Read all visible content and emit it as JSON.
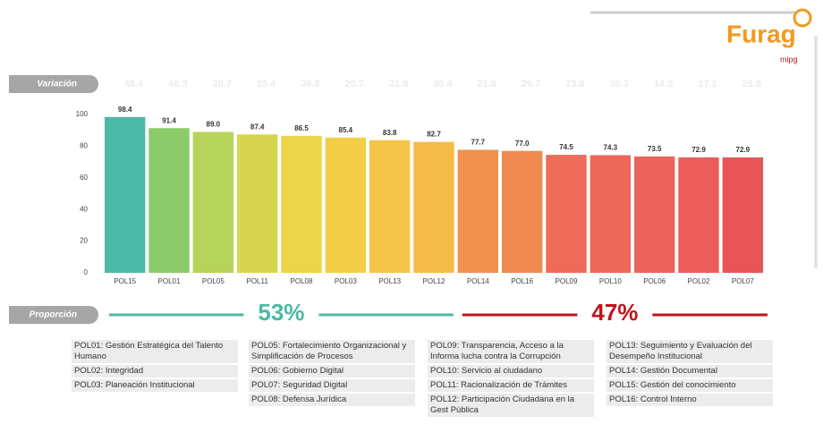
{
  "header": {
    "brand": "Furag",
    "sub": "mipg"
  },
  "variation": {
    "label": "Variación",
    "values": [
      48.4,
      46.3,
      39.7,
      33.4,
      36.8,
      20.7,
      31.8,
      30.4,
      21.6,
      26.7,
      23.6,
      30.3,
      14.2,
      17.1,
      26.9
    ]
  },
  "chart_data": {
    "type": "bar",
    "categories": [
      "POL15",
      "POL01",
      "POL05",
      "POL11",
      "POL08",
      "POL03",
      "POL13",
      "POL12",
      "POL14",
      "POL16",
      "POL09",
      "POL10",
      "POL06",
      "POL02",
      "POL07"
    ],
    "values": [
      98.4,
      91.4,
      89.0,
      87.4,
      86.5,
      85.4,
      83.8,
      82.7,
      77.7,
      77.0,
      74.5,
      74.3,
      73.5,
      72.9,
      72.9
    ],
    "value_labels": [
      "98.4",
      "91.4",
      "89.0",
      "87.4",
      "86.5",
      "85.4",
      "83.8",
      "82.7",
      "77.7",
      "77.0",
      "74.5",
      "74.3",
      "73.5",
      "72.9",
      "72.9"
    ],
    "colors": [
      "#4cb8a6",
      "#8ccb6a",
      "#b7d45a",
      "#d6d64e",
      "#ebd54a",
      "#f2cf47",
      "#f4c54a",
      "#f4bc47",
      "#f0914e",
      "#ef8a50",
      "#ee6b5a",
      "#ee685a",
      "#ec635b",
      "#ea5d5a",
      "#e85558"
    ],
    "ylim": [
      0,
      100
    ],
    "yticks": [
      0,
      20,
      40,
      60,
      80,
      100
    ]
  },
  "proportion": {
    "label": "Proporción",
    "groups": [
      {
        "value": 53,
        "label": "53%",
        "color": "#4cb8a6"
      },
      {
        "value": 47,
        "label": "47%",
        "color": "#c0141c"
      }
    ]
  },
  "legend": {
    "columns": [
      [
        "POL01: Gestión Estratégica del Talento Humano",
        "POL02: Integridad",
        "POL03: Planeación Institucional"
      ],
      [
        "POL05: Fortalecimiento Organizacional y Simplificación de Procesos",
        "POL06: Gobierno Digital",
        "POL07: Seguridad Digital",
        "POL08: Defensa Jurídica"
      ],
      [
        "POL09: Transparencia, Acceso a la Informa lucha contra la Corrupción",
        "POL10: Servicio al ciudadano",
        "POL11: Racionalización de Trámites",
        "POL12: Participación Ciudadana en la Gest Pública"
      ],
      [
        "POL13: Seguimiento y Evaluación del Desempeño Institucional",
        "POL14: Gestión Documental",
        "POL15: Gestión del conocimiento",
        "POL16: Control Interno"
      ]
    ]
  }
}
